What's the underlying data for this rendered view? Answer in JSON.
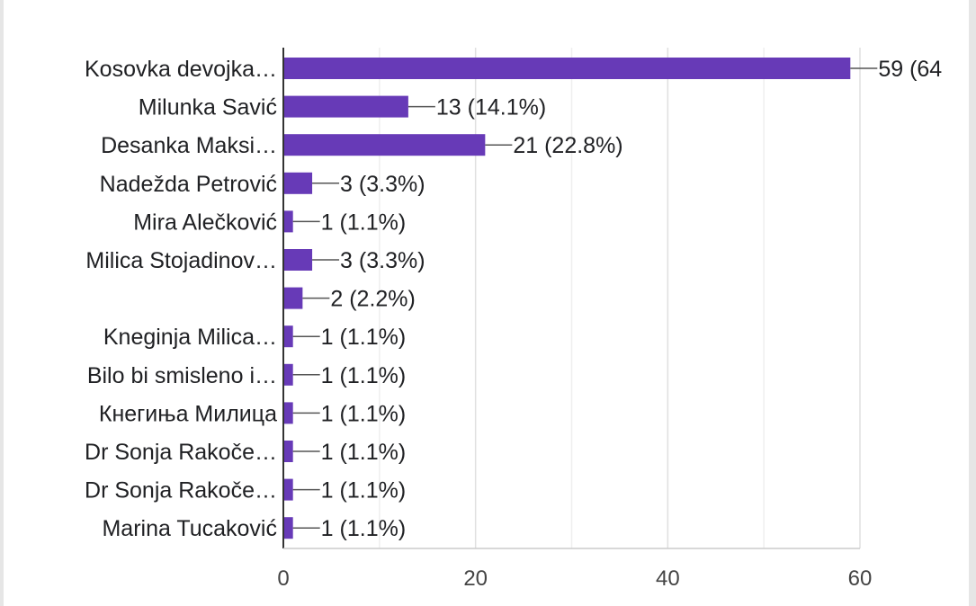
{
  "chart_data": {
    "type": "bar",
    "orientation": "horizontal",
    "categories": [
      "Kosovka devojka…",
      "Milunka Savić",
      "Desanka Maksi…",
      "Nadežda Petrović",
      "Mira Alečković",
      "Milica Stojadinov…",
      "",
      "Kneginja Milica…",
      "Bilo bi smisleno i…",
      "Кнегиња Милица",
      "Dr Sonja Rakoče…",
      "Dr Sonja Rakoče…",
      "Marina Tucaković"
    ],
    "values": [
      59,
      13,
      21,
      3,
      1,
      3,
      2,
      1,
      1,
      1,
      1,
      1,
      1
    ],
    "data_labels": [
      "59 (64",
      "13 (14.1%)",
      "21 (22.8%)",
      "3 (3.3%)",
      "1 (1.1%)",
      "3 (3.3%)",
      "2 (2.2%)",
      "1 (1.1%)",
      "1 (1.1%)",
      "1 (1.1%)",
      "1 (1.1%)",
      "1 (1.1%)",
      "1 (1.1%)"
    ],
    "x_ticks": [
      "0",
      "20",
      "40",
      "60"
    ],
    "xlim": [
      0,
      60
    ],
    "grid": true,
    "bar_color": "#673ab7",
    "title": "",
    "xlabel": "",
    "ylabel": ""
  }
}
